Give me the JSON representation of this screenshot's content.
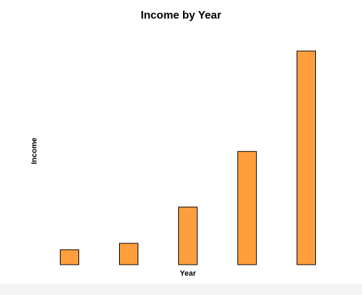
{
  "chart_data": {
    "type": "bar",
    "title": "Income by Year",
    "xlabel": "Year",
    "ylabel": "Income",
    "categories": [
      "",
      "",
      "",
      "",
      ""
    ],
    "values": [
      7,
      10,
      27,
      53,
      100
    ],
    "ylim": [
      0,
      100
    ],
    "grid": false,
    "legend": "none",
    "bar_color": "#FF9E3D",
    "bar_outline": "#000000"
  }
}
